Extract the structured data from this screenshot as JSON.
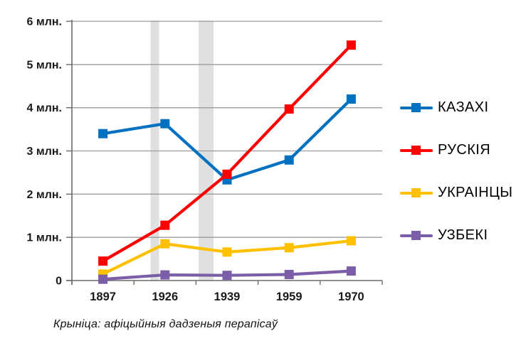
{
  "figure": {
    "caption": "Крыніца: афіцыйныя дадзеныя перапісаў"
  },
  "colors": {
    "background": "#FFFFFF",
    "gridline": "#9B9B9B",
    "axis": "#6B6B6B",
    "band": "#E0E0E0",
    "tick_text": "#1A1A1A",
    "legend_text": "#000000",
    "caption_text": "#111111"
  },
  "chart_data": {
    "type": "line",
    "title": "",
    "categories": [
      "1897",
      "1926",
      "1939",
      "1959",
      "1970"
    ],
    "series": [
      {
        "key": "kazakhi",
        "name": "КАЗАХІ",
        "color": "#0070C0",
        "values": [
          3.4,
          3.63,
          2.33,
          2.79,
          4.2
        ]
      },
      {
        "key": "ruskiya",
        "name": "РУСКІЯ",
        "color": "#FE0000",
        "values": [
          0.45,
          1.28,
          2.46,
          3.97,
          5.45
        ]
      },
      {
        "key": "ukraintsy",
        "name": "УКРАІНЦЫ",
        "color": "#FFC000",
        "values": [
          0.15,
          0.85,
          0.66,
          0.76,
          0.92
        ]
      },
      {
        "key": "uzbeki",
        "name": "УЗБЕКІ",
        "color": "#7B5EA7",
        "values": [
          0.03,
          0.13,
          0.12,
          0.14,
          0.22
        ]
      }
    ],
    "xlabel": "",
    "ylabel": "",
    "ylim": [
      0,
      6
    ],
    "yticks": [
      {
        "value": 0,
        "label": "0"
      },
      {
        "value": 1,
        "label": "1 млн."
      },
      {
        "value": 2,
        "label": "2 млн."
      },
      {
        "value": 3,
        "label": "3 млн."
      },
      {
        "value": 4,
        "label": "4 млн."
      },
      {
        "value": 5,
        "label": "5 млн."
      },
      {
        "value": 6,
        "label": "6 млн."
      }
    ],
    "grid": true,
    "legend_position": "right",
    "marker": "square",
    "marker_size": 13,
    "line_width": 4.2,
    "highlight_bands": [
      {
        "x": 211.5,
        "width": 12
      },
      {
        "x": 279,
        "width": 21
      }
    ]
  }
}
